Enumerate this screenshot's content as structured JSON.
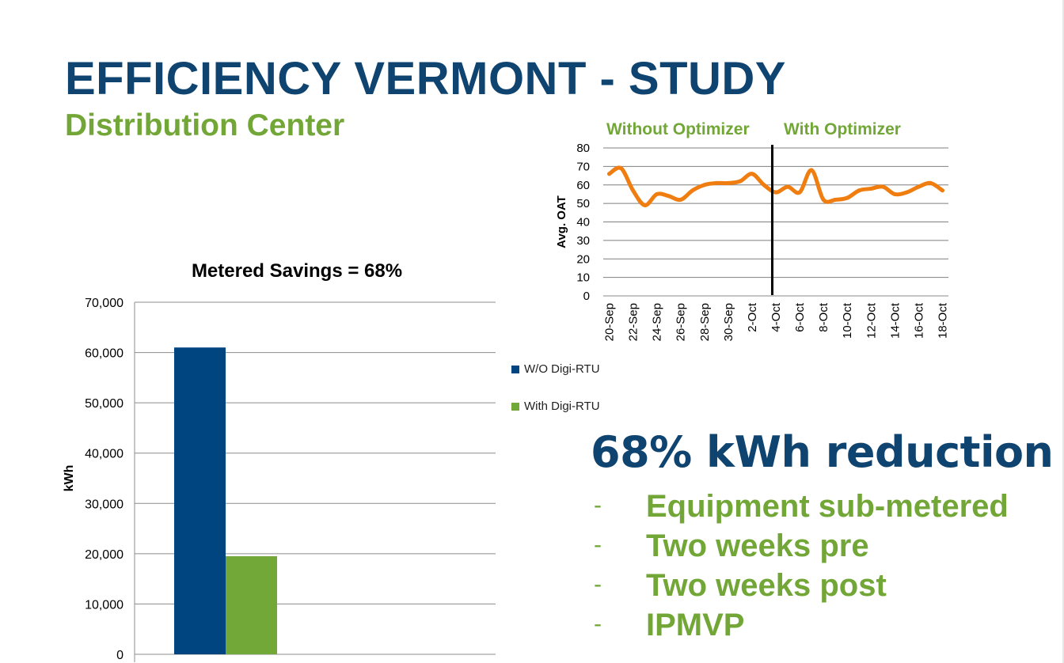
{
  "slide": {
    "title": "EFFICIENCY VERMONT - STUDY",
    "subtitle": "Distribution Center"
  },
  "headline": "68% kWh reduction",
  "bullets": [
    {
      "marker": "-",
      "text": "Equipment sub-metered"
    },
    {
      "marker": "-",
      "text": "Two weeks pre"
    },
    {
      "marker": "-",
      "text": "Two weeks post"
    },
    {
      "marker": "-",
      "text": "IPMVP"
    }
  ],
  "colors": {
    "title_blue": "#0f4470",
    "accent_green": "#72a737",
    "line_orange": "#f07d0f",
    "bar_blue": "#004480",
    "bar_green": "#72a837"
  },
  "chart_data": [
    {
      "type": "line",
      "title": "",
      "section_labels": {
        "before": "Without Optimizer",
        "after": "With Optimizer"
      },
      "ylabel": "Avg. OAT",
      "xlabel": "",
      "ylim": [
        0,
        80
      ],
      "yticks": [
        0,
        10,
        20,
        30,
        40,
        50,
        60,
        70,
        80
      ],
      "grid": true,
      "x": [
        "20-Sep",
        "21-Sep",
        "22-Sep",
        "23-Sep",
        "24-Sep",
        "25-Sep",
        "26-Sep",
        "27-Sep",
        "28-Sep",
        "29-Sep",
        "30-Sep",
        "1-Oct",
        "2-Oct",
        "3-Oct",
        "4-Oct",
        "5-Oct",
        "6-Oct",
        "7-Oct",
        "8-Oct",
        "9-Oct",
        "10-Oct",
        "11-Oct",
        "12-Oct",
        "13-Oct",
        "14-Oct",
        "15-Oct",
        "16-Oct",
        "17-Oct",
        "18-Oct"
      ],
      "xtick_labels": [
        "20-Sep",
        "22-Sep",
        "24-Sep",
        "26-Sep",
        "28-Sep",
        "30-Sep",
        "2-Oct",
        "4-Oct",
        "6-Oct",
        "8-Oct",
        "10-Oct",
        "12-Oct",
        "14-Oct",
        "16-Oct",
        "18-Oct"
      ],
      "series": [
        {
          "values": [
            66,
            69,
            57,
            49,
            55,
            54,
            52,
            57,
            60,
            61,
            61,
            62,
            66,
            60,
            56,
            59,
            56,
            68,
            52,
            52,
            53,
            57,
            58,
            59,
            55,
            56,
            59,
            61,
            57
          ]
        }
      ],
      "marker_line_at": "4-Oct",
      "legend": "none"
    },
    {
      "type": "bar",
      "title": "Metered Savings = 68%",
      "xlabel": "",
      "ylabel": "kWh",
      "ylim": [
        0,
        70000
      ],
      "ytick_labels": [
        "0",
        "10,000",
        "20,000",
        "30,000",
        "40,000",
        "50,000",
        "60,000",
        "70,000"
      ],
      "yticks": [
        0,
        10000,
        20000,
        30000,
        40000,
        50000,
        60000,
        70000
      ],
      "grid": true,
      "legend": "right",
      "series": [
        {
          "name": "W/O Digi-RTU",
          "values": [
            61000
          ]
        },
        {
          "name": "With Digi-RTU",
          "values": [
            19500
          ]
        }
      ]
    }
  ]
}
